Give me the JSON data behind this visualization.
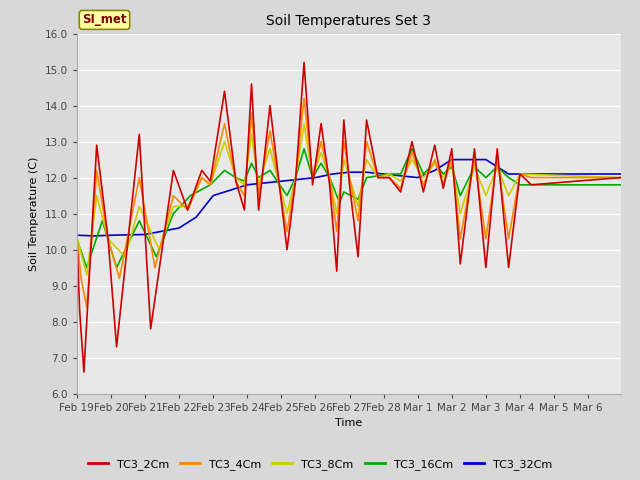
{
  "title": "Soil Temperatures Set 3",
  "xlabel": "Time",
  "ylabel": "Soil Temperature (C)",
  "ylim": [
    6.0,
    16.0
  ],
  "yticks": [
    6.0,
    7.0,
    8.0,
    9.0,
    10.0,
    11.0,
    12.0,
    13.0,
    14.0,
    15.0,
    16.0
  ],
  "n_days": 16,
  "n_points_per_day": 24,
  "xtick_positions": [
    0,
    24,
    48,
    72,
    96,
    120,
    144,
    168,
    192,
    216,
    240,
    264,
    288,
    312,
    336,
    360
  ],
  "xtick_labels": [
    "Feb 19",
    "Feb 20",
    "Feb 21",
    "Feb 22",
    "Feb 23",
    "Feb 24",
    "Feb 25",
    "Feb 26",
    "Feb 27",
    "Feb 28",
    "Mar 1",
    "Mar 2",
    "Mar 3",
    "Mar 4",
    "Mar 5",
    "Mar 6"
  ],
  "series_colors": [
    "#cc0000",
    "#ff8800",
    "#cccc00",
    "#00aa00",
    "#0000cc"
  ],
  "series_labels": [
    "TC3_2Cm",
    "TC3_4Cm",
    "TC3_8Cm",
    "TC3_16Cm",
    "TC3_32Cm"
  ],
  "fig_bg_color": "#d8d8d8",
  "plot_bg_color": "#e8e8e8",
  "grid_color": "#ffffff",
  "annotation_text": "SI_met",
  "annotation_bg": "#ffffaa",
  "annotation_border": "#888800",
  "line_width": 1.2,
  "title_fontsize": 10,
  "axis_label_fontsize": 8,
  "tick_fontsize": 7.5,
  "legend_fontsize": 8
}
